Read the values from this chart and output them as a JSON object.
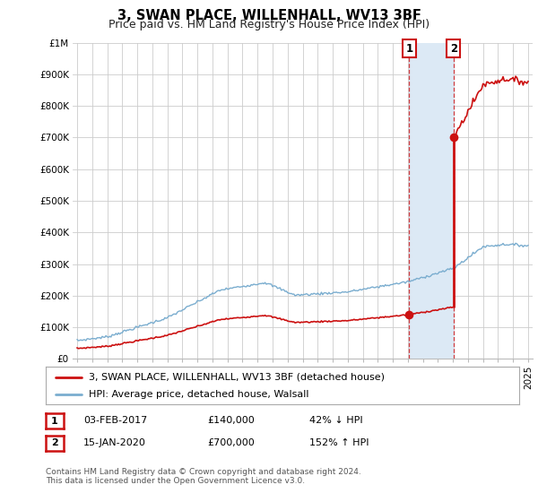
{
  "title": "3, SWAN PLACE, WILLENHALL, WV13 3BF",
  "subtitle": "Price paid vs. HM Land Registry's House Price Index (HPI)",
  "ylim": [
    0,
    1000000
  ],
  "yticks": [
    0,
    100000,
    200000,
    300000,
    400000,
    500000,
    600000,
    700000,
    800000,
    900000,
    1000000
  ],
  "ytick_labels": [
    "£0",
    "£100K",
    "£200K",
    "£300K",
    "£400K",
    "£500K",
    "£600K",
    "£700K",
    "£800K",
    "£900K",
    "£1M"
  ],
  "hpi_color": "#7aadcf",
  "hpi_fill_color": "#dce9f5",
  "sale_color": "#cc1111",
  "marker_color": "#cc1111",
  "background_color": "#ffffff",
  "grid_color": "#cccccc",
  "sale1_x": 2017.09,
  "sale1_y": 140000,
  "sale1_label": "1",
  "sale2_x": 2020.04,
  "sale2_y": 700000,
  "sale2_label": "2",
  "legend_label_sale": "3, SWAN PLACE, WILLENHALL, WV13 3BF (detached house)",
  "legend_label_hpi": "HPI: Average price, detached house, Walsall",
  "table_rows": [
    [
      "1",
      "03-FEB-2017",
      "£140,000",
      "42% ↓ HPI"
    ],
    [
      "2",
      "15-JAN-2020",
      "£700,000",
      "152% ↑ HPI"
    ]
  ],
  "footnote": "Contains HM Land Registry data © Crown copyright and database right 2024.\nThis data is licensed under the Open Government Licence v3.0.",
  "title_fontsize": 10.5,
  "subtitle_fontsize": 9,
  "tick_fontsize": 7.5,
  "legend_fontsize": 8,
  "table_fontsize": 8,
  "footnote_fontsize": 6.5,
  "xmin": 1995,
  "xmax": 2025
}
